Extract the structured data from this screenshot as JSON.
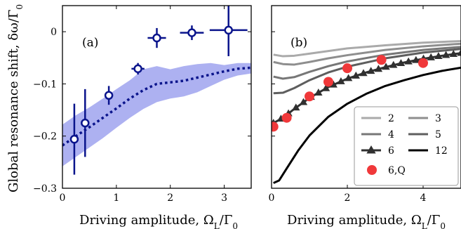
{
  "chart_data": [
    {
      "panel": "(a)",
      "type": "scatter",
      "ylabel": "Global resonance shift, δω/Γ₀",
      "xlabel": "Driving amplitude, Ω_L/Γ₀",
      "xlim": [
        0,
        3.5
      ],
      "ylim": [
        -0.3,
        0.05
      ],
      "xticks": [
        0,
        1,
        2,
        3
      ],
      "yticks": [
        -0.3,
        -0.2,
        -0.1,
        0
      ],
      "ytick_labels": [
        "−0.3",
        "−0.2",
        "−0.1",
        "0"
      ],
      "colors": {
        "data": "#0a148c",
        "band": "#9fa3ee",
        "theory": "#0a148c"
      },
      "points": [
        {
          "x": 0.22,
          "y": -0.206,
          "yerr": 0.068,
          "xerr": 0.06
        },
        {
          "x": 0.42,
          "y": -0.175,
          "yerr": 0.065,
          "xerr": 0.06
        },
        {
          "x": 0.86,
          "y": -0.122,
          "yerr": 0.018,
          "xerr": 0.07
        },
        {
          "x": 1.4,
          "y": -0.071,
          "yerr": 0.011,
          "xerr": 0.12
        },
        {
          "x": 1.75,
          "y": -0.012,
          "yerr": 0.019,
          "xerr": 0.17
        },
        {
          "x": 2.4,
          "y": -0.002,
          "yerr": 0.014,
          "xerr": 0.22
        },
        {
          "x": 3.08,
          "y": 0.003,
          "yerr": 0.05,
          "xerr": 0.35
        }
      ],
      "theory_line": {
        "x": [
          0.0,
          0.25,
          0.5,
          0.75,
          1.0,
          1.25,
          1.5,
          1.75,
          2.0,
          2.25,
          2.5,
          2.75,
          3.0,
          3.25,
          3.5
        ],
        "y": [
          -0.218,
          -0.2,
          -0.183,
          -0.165,
          -0.147,
          -0.128,
          -0.112,
          -0.1,
          -0.097,
          -0.094,
          -0.088,
          -0.082,
          -0.076,
          -0.071,
          -0.069
        ]
      },
      "theory_band": {
        "x": [
          0.0,
          0.25,
          0.5,
          0.75,
          1.0,
          1.25,
          1.5,
          1.75,
          2.0,
          2.25,
          2.5,
          2.75,
          3.0,
          3.25,
          3.5
        ],
        "upper": [
          -0.178,
          -0.16,
          -0.145,
          -0.128,
          -0.11,
          -0.093,
          -0.072,
          -0.066,
          -0.072,
          -0.066,
          -0.062,
          -0.06,
          -0.064,
          -0.06,
          -0.06
        ],
        "lower": [
          -0.258,
          -0.24,
          -0.222,
          -0.204,
          -0.184,
          -0.165,
          -0.148,
          -0.135,
          -0.128,
          -0.124,
          -0.116,
          -0.104,
          -0.092,
          -0.084,
          -0.08
        ]
      }
    },
    {
      "panel": "(b)",
      "type": "line",
      "xlabel": "Driving amplitude, Ω_L/Γ₀",
      "xlim": [
        0,
        5
      ],
      "ylim": [
        -0.3,
        0.05
      ],
      "xticks": [
        0,
        2,
        4
      ],
      "series": [
        {
          "name": "2",
          "color": "#aaaaaa",
          "x": [
            0.05,
            0.3,
            0.6,
            1,
            1.5,
            2,
            3,
            4,
            5
          ],
          "y": [
            -0.044,
            -0.047,
            -0.046,
            -0.042,
            -0.037,
            -0.032,
            -0.026,
            -0.021,
            -0.018
          ]
        },
        {
          "name": "3",
          "color": "#8e8e8e",
          "x": [
            0.05,
            0.3,
            0.6,
            1,
            1.5,
            2,
            3,
            4,
            5
          ],
          "y": [
            -0.058,
            -0.062,
            -0.063,
            -0.058,
            -0.051,
            -0.045,
            -0.035,
            -0.028,
            -0.023
          ]
        },
        {
          "name": "4",
          "color": "#777777",
          "x": [
            0.05,
            0.3,
            0.6,
            1,
            1.5,
            2,
            3,
            4,
            5
          ],
          "y": [
            -0.086,
            -0.09,
            -0.087,
            -0.077,
            -0.066,
            -0.057,
            -0.044,
            -0.035,
            -0.029
          ]
        },
        {
          "name": "5",
          "color": "#5e5e5e",
          "x": [
            0.05,
            0.3,
            0.6,
            1,
            1.5,
            2,
            3,
            4,
            5
          ],
          "y": [
            -0.118,
            -0.117,
            -0.108,
            -0.093,
            -0.078,
            -0.067,
            -0.051,
            -0.04,
            -0.033
          ]
        },
        {
          "name": "6",
          "color": "#303030",
          "marker": "triangle",
          "x": [
            0.05,
            0.3,
            0.6,
            1,
            1.5,
            2,
            2.5,
            3,
            3.5,
            4,
            4.5,
            5
          ],
          "y": [
            -0.175,
            -0.165,
            -0.148,
            -0.127,
            -0.106,
            -0.09,
            -0.078,
            -0.068,
            -0.059,
            -0.052,
            -0.046,
            -0.041
          ]
        },
        {
          "name": "12",
          "color": "#000000",
          "x": [
            0.05,
            0.2,
            0.4,
            0.7,
            1,
            1.5,
            2,
            2.5,
            3,
            3.5,
            4,
            4.5,
            5
          ],
          "y": [
            -0.29,
            -0.285,
            -0.262,
            -0.228,
            -0.199,
            -0.163,
            -0.138,
            -0.119,
            -0.104,
            -0.093,
            -0.083,
            -0.075,
            -0.069
          ]
        },
        {
          "name": "6,Q",
          "color": "#f0383a",
          "marker": "circle",
          "line": false,
          "x": [
            0.05,
            0.4,
            1.0,
            1.5,
            2.0,
            2.9,
            4.0
          ],
          "y": [
            -0.182,
            -0.165,
            -0.124,
            -0.096,
            -0.07,
            -0.054,
            -0.06
          ]
        }
      ],
      "legend": {
        "placement": "lower-right",
        "entries": [
          {
            "label": "2",
            "series": 0
          },
          {
            "label": "3",
            "series": 1
          },
          {
            "label": "4",
            "series": 2
          },
          {
            "label": "5",
            "series": 3
          },
          {
            "label": "6",
            "series": 4
          },
          {
            "label": "12",
            "series": 5
          },
          {
            "label": "6,Q",
            "series": 6
          }
        ]
      }
    }
  ]
}
